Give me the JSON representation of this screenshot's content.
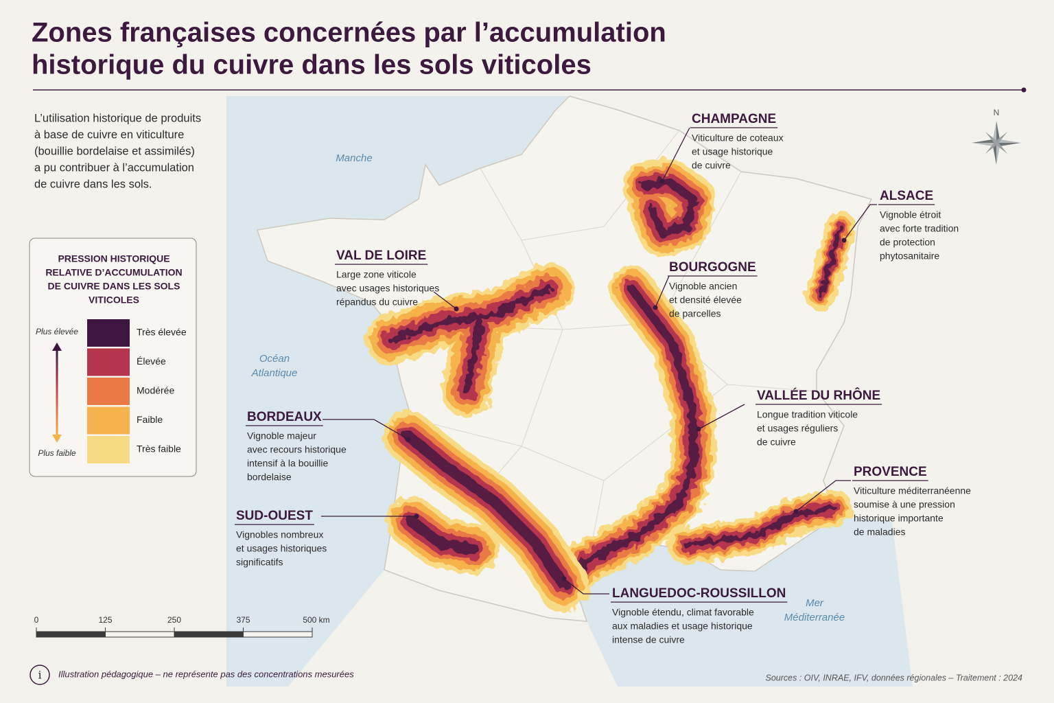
{
  "title": [
    "Zones françaises concernées par l’accumulation",
    "historique du cuivre dans les sols viticoles"
  ],
  "intro": [
    "L’utilisation historique de produits",
    "à base de cuivre en viticulture",
    "(bouillie bordelaise et assimilés)",
    "a pu contribuer à l’accumulation",
    "de cuivre dans les sols."
  ],
  "seas": [
    {
      "lines": [
        "Manche"
      ]
    },
    {
      "lines": [
        "Océan",
        "Atlantique"
      ]
    },
    {
      "lines": [
        "Mer",
        "Méditerranée"
      ]
    }
  ],
  "compass": "N",
  "legend": {
    "title": [
      "PRESSION HISTORIQUE",
      "RELATIVE D’ACCUMULATION",
      "DE CUIVRE DANS LES SOLS",
      "VITICOLES"
    ],
    "top": "Plus élevée",
    "bottom": "Plus faible",
    "classes": [
      {
        "label": "Très élevée",
        "color": "#3e1540"
      },
      {
        "label": "Élevée",
        "color": "#b5354f"
      },
      {
        "label": "Modérée",
        "color": "#ea7a45"
      },
      {
        "label": "Faible",
        "color": "#f6b24c"
      },
      {
        "label": "Très faible",
        "color": "#f8dc85"
      }
    ]
  },
  "regions": [
    {
      "name": "CHAMPAGNE",
      "description": [
        "Viticulture de coteaux",
        "et usage historique",
        "de cuivre"
      ]
    },
    {
      "name": "ALSACE",
      "description": [
        "Vignoble étroit",
        "avec forte tradition",
        "de protection",
        "phytosanitaire"
      ]
    },
    {
      "name": "VAL DE LOIRE",
      "description": [
        "Large zone viticole",
        "avec usages historiques",
        "répandus du cuivre"
      ]
    },
    {
      "name": "BOURGOGNE",
      "description": [
        "Vignoble ancien",
        "et densité élevée",
        "de parcelles"
      ]
    },
    {
      "name": "VALLÉE DU RHÔNE",
      "description": [
        "Longue tradition viticole",
        "et usages réguliers",
        "de cuivre"
      ]
    },
    {
      "name": "BORDEAUX",
      "description": [
        "Vignoble majeur",
        "avec recours historique",
        "intensif à la bouillie",
        "bordelaise"
      ]
    },
    {
      "name": "SUD-OUEST",
      "description": [
        "Vignobles nombreux",
        "et usages historiques",
        "significatifs"
      ]
    },
    {
      "name": "PROVENCE",
      "description": [
        "Viticulture méditerranéenne",
        "soumise à une pression",
        "historique importante",
        "de maladies"
      ]
    },
    {
      "name": "LANGUEDOC-ROUSSILLON",
      "description": [
        "Vignoble étendu, climat favorable",
        "aux maladies et usage historique",
        "intense de cuivre"
      ]
    }
  ],
  "scale": {
    "ticks": [
      0,
      125,
      250,
      375,
      {
        "value": 500,
        "label": "500 km"
      }
    ]
  },
  "note": "Illustration pédagogique – ne représente pas des concentrations mesurées",
  "info_icon": "i",
  "sources": "Sources : OIV, INRAE, IFV, données régionales – Traitement : 2024"
}
